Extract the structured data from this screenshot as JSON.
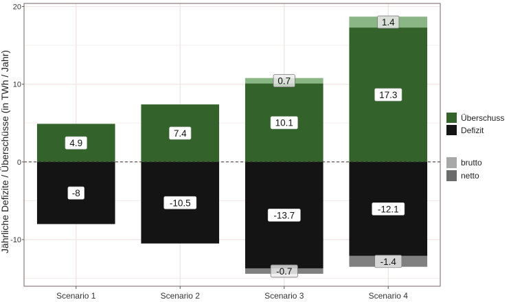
{
  "chart_data": {
    "type": "bar",
    "stacked": true,
    "title": "",
    "xlabel": "",
    "ylabel": "Jährliche Defizite / Überschüsse (in TWh / Jahr)",
    "ylim": [
      -16,
      20.4
    ],
    "yticks": [
      -10,
      0,
      10,
      20
    ],
    "ytick_labels": [
      "-10",
      "0",
      "10",
      "20"
    ],
    "grid": true,
    "zero_line": "dashed",
    "categories": [
      "Scenario 1",
      "Scenario 2",
      "Scenario 3",
      "Scenario 4"
    ],
    "series": [
      {
        "name": "Überschuss netto",
        "group": "Überschuss",
        "type": "netto",
        "values": [
          4.9,
          7.4,
          10.1,
          17.3
        ],
        "labels": [
          "4.9",
          "7.4",
          "10.1",
          "17.3"
        ]
      },
      {
        "name": "Überschuss brutto",
        "group": "Überschuss",
        "type": "brutto",
        "values": [
          0,
          0,
          0.7,
          1.4
        ],
        "labels": [
          "",
          "",
          "0.7",
          "1.4"
        ]
      },
      {
        "name": "Defizit netto",
        "group": "Defizit",
        "type": "netto",
        "values": [
          -8,
          -10.5,
          -13.7,
          -12.1
        ],
        "labels": [
          "-8",
          "-10.5",
          "-13.7",
          "-12.1"
        ]
      },
      {
        "name": "Defizit brutto",
        "group": "Defizit",
        "type": "brutto",
        "values": [
          0,
          0,
          -0.7,
          -1.4
        ],
        "labels": [
          "",
          "",
          "-0.7",
          "-1.4"
        ]
      }
    ],
    "legend": {
      "placement": "right",
      "fill": [
        {
          "label": "Überschuss",
          "color": "#33632b"
        },
        {
          "label": "Defizit",
          "color": "#141414"
        }
      ],
      "alpha": [
        {
          "label": "brutto",
          "color": "#a8a8a8"
        },
        {
          "label": "netto",
          "color": "#6b6b6b"
        }
      ]
    },
    "colors": {
      "surplus_netto": "#33632b",
      "surplus_brutto": "#8ab585",
      "deficit_netto": "#141414",
      "deficit_brutto": "#808080"
    }
  }
}
